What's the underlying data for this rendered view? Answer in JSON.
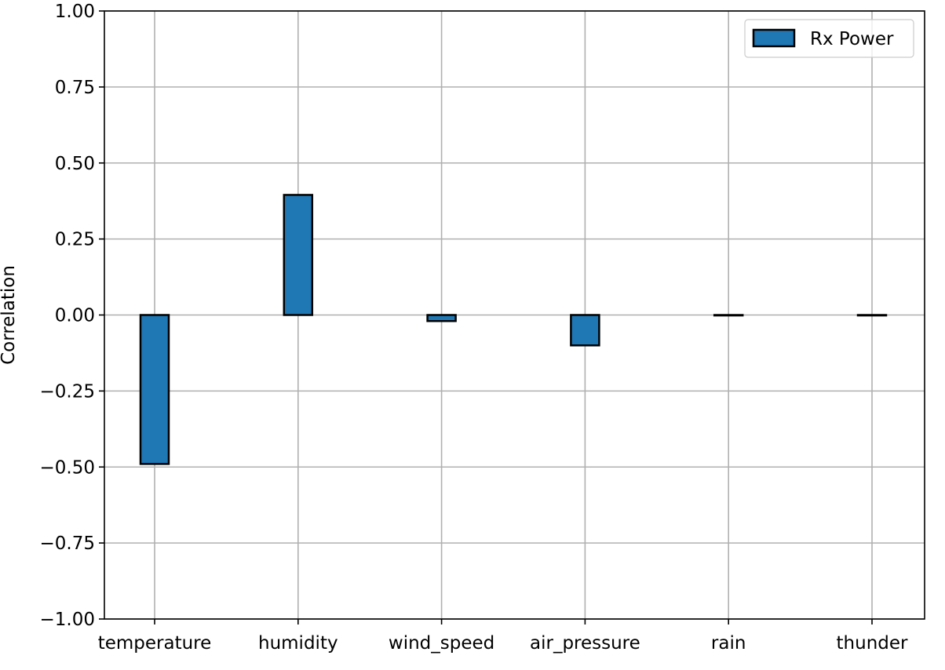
{
  "chart_data": {
    "type": "bar",
    "categories": [
      "temperature",
      "humidity",
      "wind_speed",
      "air_pressure",
      "rain",
      "thunder"
    ],
    "series": [
      {
        "name": "Rx Power",
        "values": [
          -0.49,
          0.395,
          -0.02,
          -0.1,
          0.0,
          0.0
        ],
        "color": "#1f77b4",
        "edgecolor": "#000000"
      }
    ],
    "xlabel": "",
    "ylabel": "Correlation",
    "ylim": [
      -1.0,
      1.0
    ],
    "yticks": [
      "−1.00",
      "−0.75",
      "−0.50",
      "−0.25",
      "0.00",
      "0.25",
      "0.50",
      "0.75",
      "1.00"
    ],
    "ytick_values": [
      -1.0,
      -0.75,
      -0.5,
      -0.25,
      0.0,
      0.25,
      0.5,
      0.75,
      1.0
    ],
    "grid": true,
    "grid_color": "#b0b0b0",
    "legend_position": "top-right"
  }
}
